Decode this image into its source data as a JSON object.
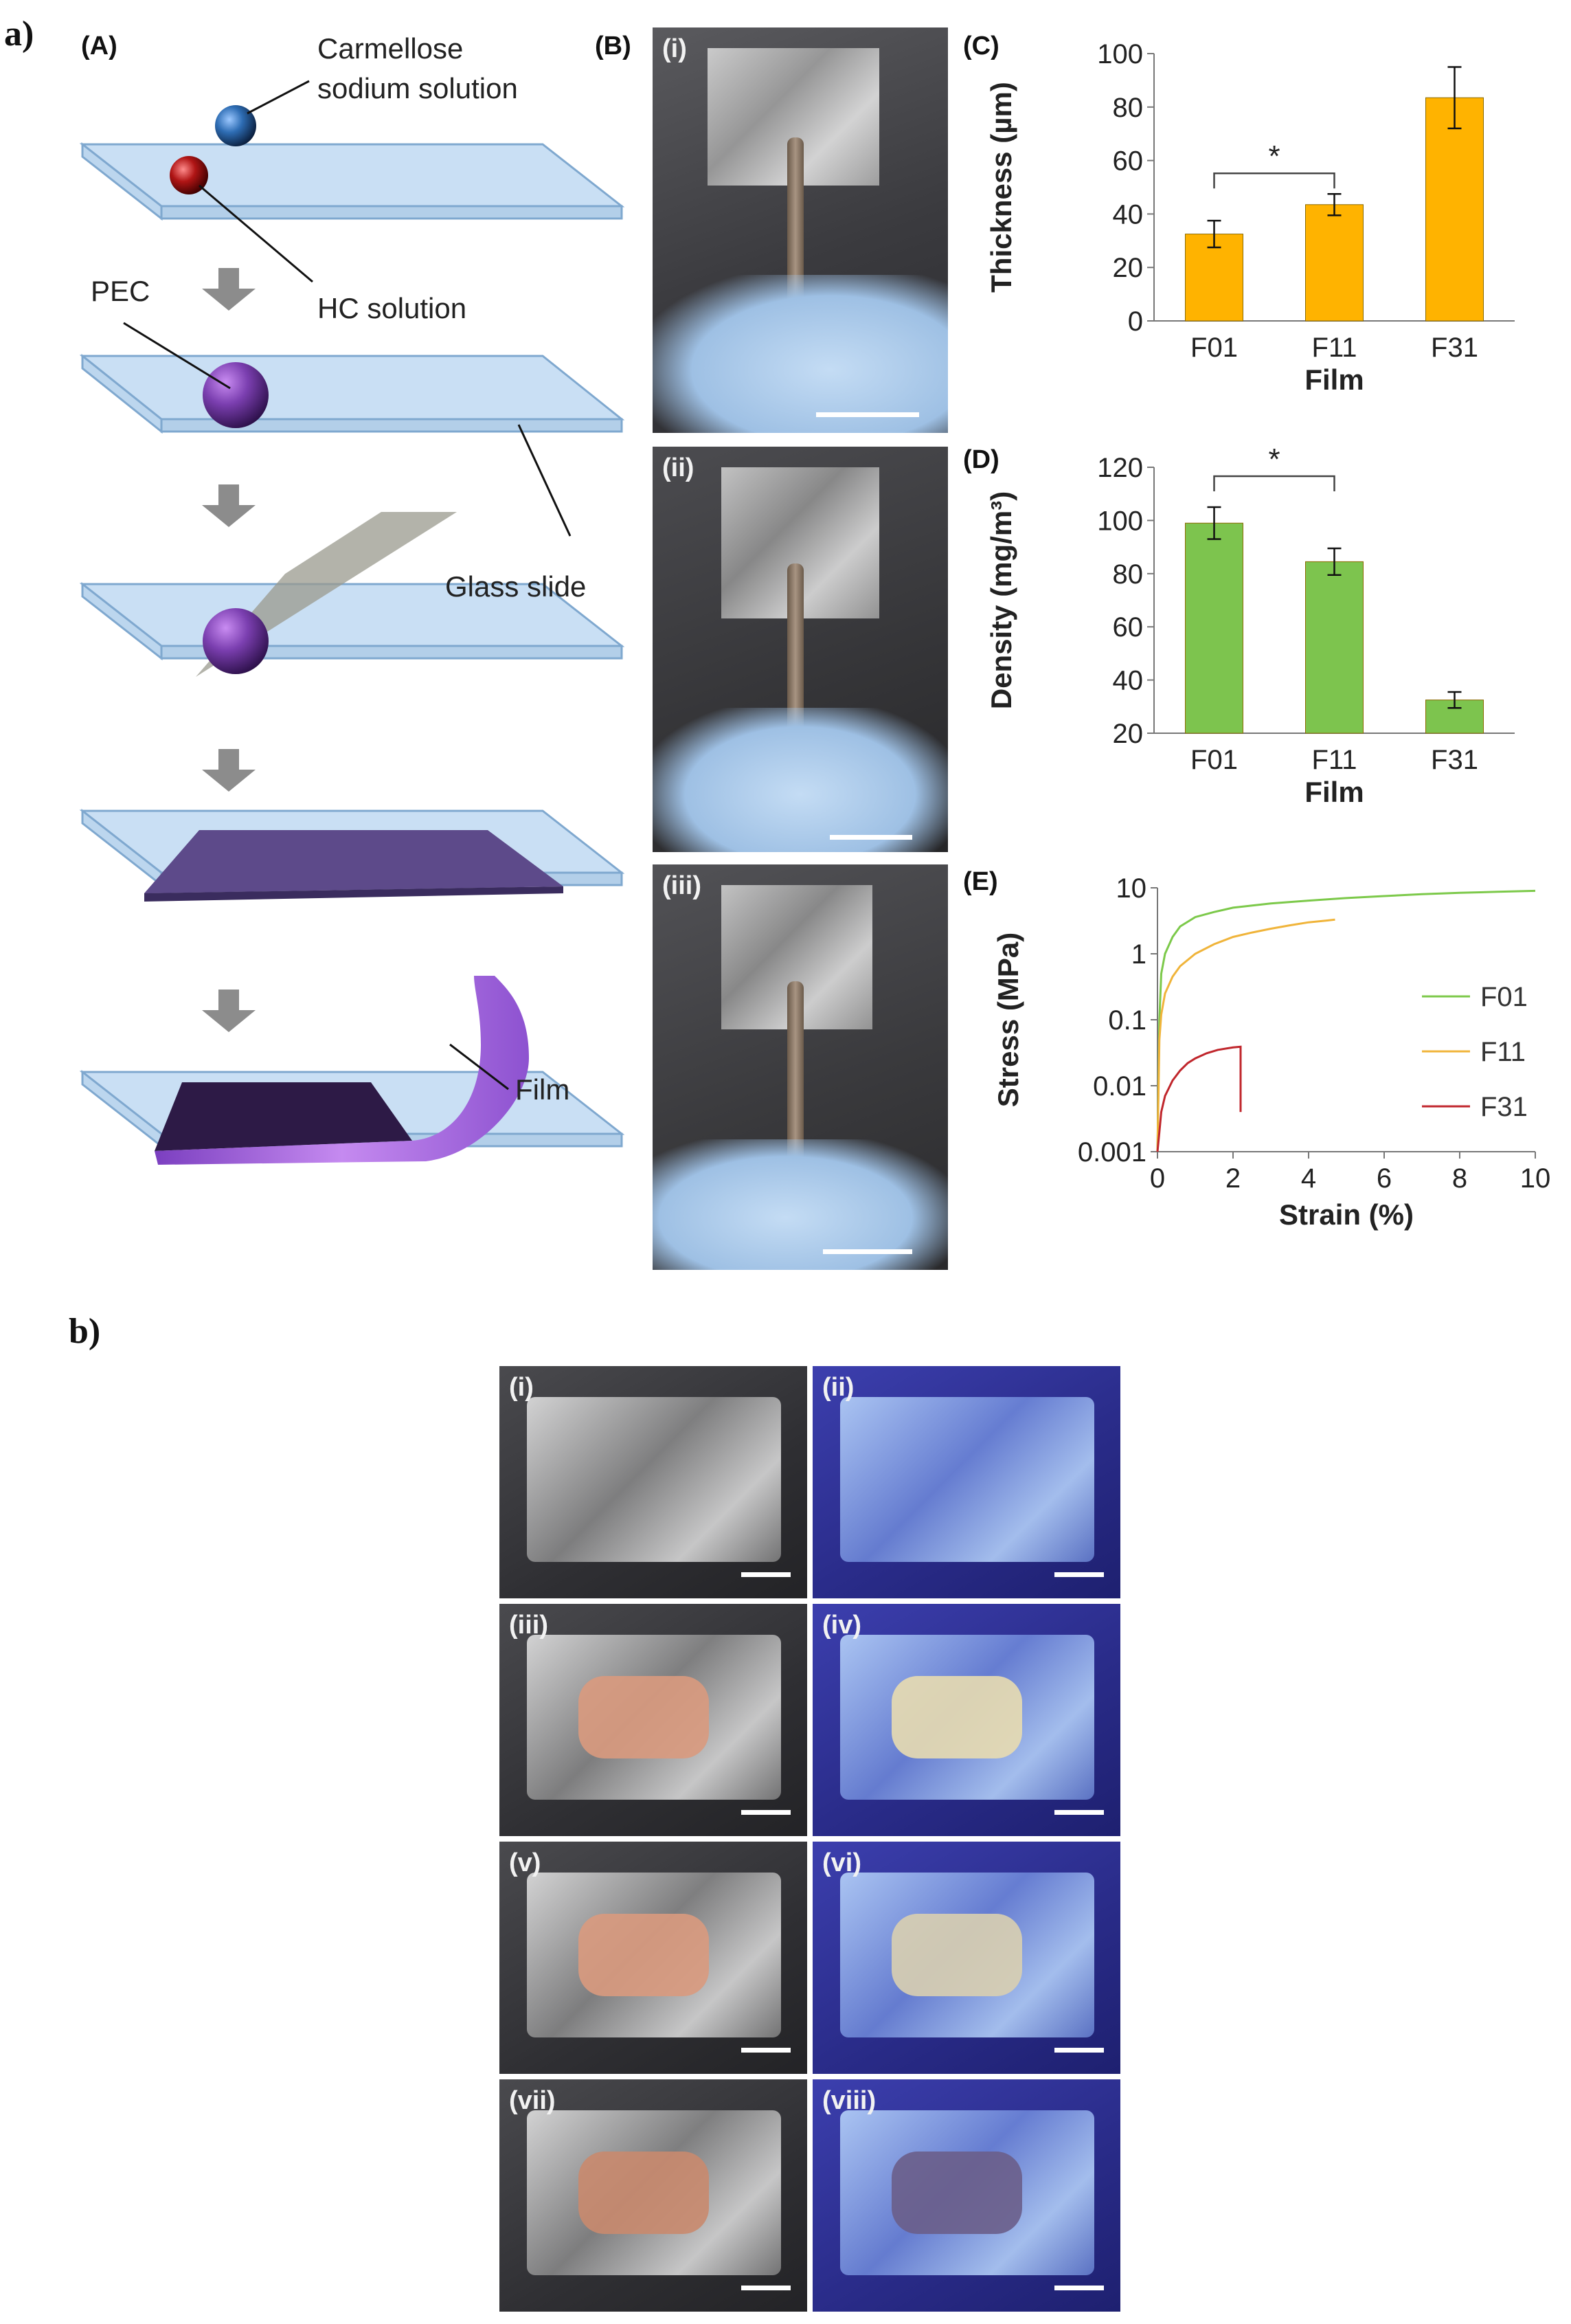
{
  "figure": {
    "part_a_label": "a)",
    "part_b_label": "b)"
  },
  "panel_A": {
    "label": "(A)",
    "callouts": {
      "carmellose_line1": "Carmellose",
      "carmellose_line2": "sodium solution",
      "hc": "HC solution",
      "pec": "PEC",
      "glass": "Glass slide",
      "film": "Film"
    },
    "colors": {
      "slide": "#c9dff4",
      "slide_edge": "#7fa8cf",
      "pec": "#7b3fb0",
      "blue_drop": "#2e6db4",
      "red_drop": "#b01515",
      "film": "#5d4a8a",
      "film_curl": "#a86be0",
      "arrow": "#8c8c8c"
    }
  },
  "panel_B": {
    "label": "(B)",
    "photos": [
      {
        "label": "(i)"
      },
      {
        "label": "(ii)"
      },
      {
        "label": "(iii)"
      }
    ]
  },
  "chart_C": {
    "label": "(C)",
    "significance": "*",
    "yticks": [
      "0",
      "20",
      "40",
      "60",
      "80",
      "100"
    ],
    "color": "#ffb300"
  },
  "chart_D": {
    "label": "(D)",
    "significance": "*",
    "yticks": [
      "20",
      "40",
      "60",
      "80",
      "100",
      "120"
    ],
    "color": "#7dc44e"
  },
  "chart_E": {
    "label": "(E)",
    "yticks": [
      "0.001",
      "0.01",
      "0.1",
      "1",
      "10"
    ],
    "xticks": [
      "0",
      "2",
      "4",
      "6",
      "8",
      "10"
    ]
  },
  "chart_data": [
    {
      "type": "bar",
      "categories": [
        "F01",
        "F11",
        "F31"
      ],
      "values": [
        32.5,
        43.5,
        83.5
      ],
      "errors": [
        5,
        4,
        11.5
      ],
      "xlabel": "Film",
      "ylabel": "Thickness (µm)",
      "ylim": [
        0,
        100
      ],
      "significance": [
        {
          "from": "F01",
          "to": "F11",
          "mark": "*"
        }
      ]
    },
    {
      "type": "bar",
      "categories": [
        "F01",
        "F11",
        "F31"
      ],
      "values": [
        99,
        84.5,
        32.5
      ],
      "errors": [
        6,
        5,
        3
      ],
      "xlabel": "Film",
      "ylabel": "Density (mg/m³)",
      "ylim": [
        20,
        120
      ],
      "significance": [
        {
          "from": "F01",
          "to": "F11",
          "mark": "*"
        }
      ]
    },
    {
      "type": "line",
      "xlabel": "Strain (%)",
      "ylabel": "Stress (MPa)",
      "xlim": [
        0,
        10
      ],
      "ylim": [
        0.001,
        10
      ],
      "yscale": "log",
      "legend_position": "right",
      "series": [
        {
          "name": "F01",
          "color": "#7cc94a",
          "x": [
            0,
            0.05,
            0.1,
            0.2,
            0.4,
            0.6,
            1,
            1.5,
            2,
            3,
            4,
            5,
            6,
            7,
            8,
            9,
            10
          ],
          "y": [
            0.001,
            0.1,
            0.5,
            1,
            1.8,
            2.6,
            3.6,
            4.3,
            5,
            5.8,
            6.4,
            7,
            7.5,
            8,
            8.4,
            8.7,
            9
          ]
        },
        {
          "name": "F11",
          "color": "#f0b43a",
          "x": [
            0,
            0.05,
            0.1,
            0.2,
            0.4,
            0.6,
            1,
            1.5,
            2,
            2.5,
            3,
            3.5,
            4,
            4.5,
            4.7
          ],
          "y": [
            0.001,
            0.05,
            0.12,
            0.25,
            0.45,
            0.65,
            1,
            1.4,
            1.8,
            2.1,
            2.4,
            2.7,
            3,
            3.2,
            3.3
          ]
        },
        {
          "name": "F31",
          "color": "#c0262c",
          "x": [
            0,
            0.05,
            0.1,
            0.2,
            0.4,
            0.6,
            0.8,
            1,
            1.3,
            1.6,
            2,
            2.2,
            2.2
          ],
          "y": [
            0.001,
            0.002,
            0.004,
            0.007,
            0.012,
            0.017,
            0.022,
            0.026,
            0.031,
            0.035,
            0.038,
            0.039,
            0.004
          ]
        }
      ]
    }
  ],
  "panel_b": {
    "photos": [
      {
        "label": "(i)"
      },
      {
        "label": "(ii)"
      },
      {
        "label": "(iii)"
      },
      {
        "label": "(iv)"
      },
      {
        "label": "(v)"
      },
      {
        "label": "(vi)"
      },
      {
        "label": "(vii)"
      },
      {
        "label": "(viii)"
      }
    ]
  }
}
